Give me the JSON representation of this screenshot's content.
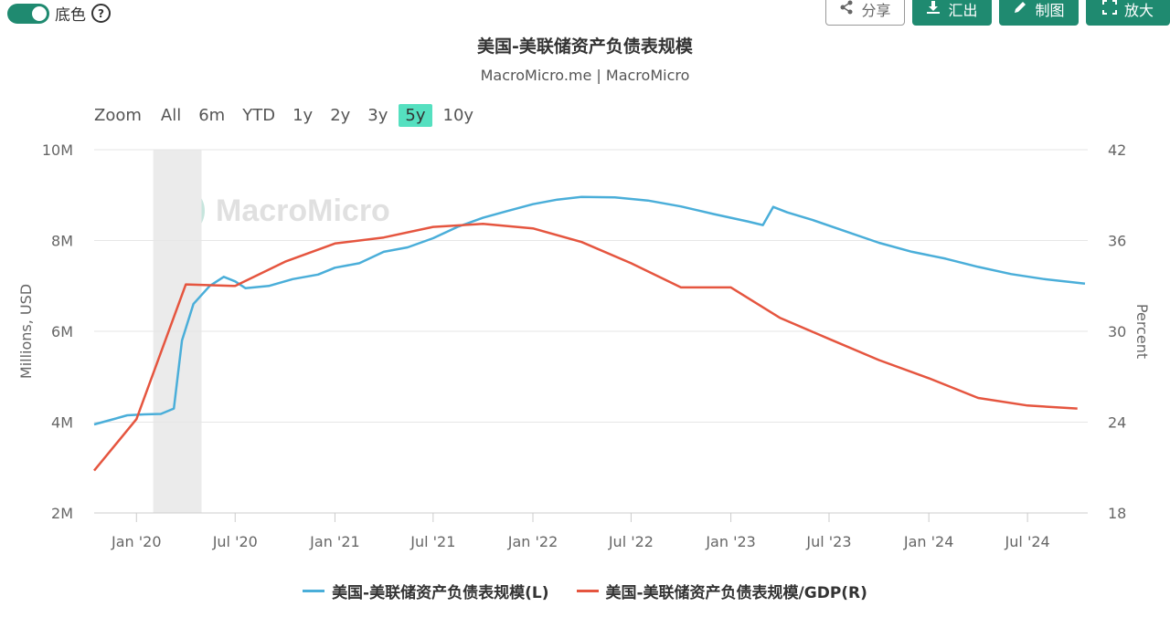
{
  "toggle": {
    "label": "底色",
    "on": true
  },
  "help": {
    "label": "?"
  },
  "toolbar": {
    "share": "分享",
    "export": "汇出",
    "draw": "制图",
    "enlarge": "放大"
  },
  "title": "美国-美联储资产负债表规模",
  "subtitle": "MacroMicro.me | MacroMicro",
  "zoom": {
    "label": "Zoom",
    "options": [
      "All",
      "6m",
      "YTD",
      "1y",
      "2y",
      "3y",
      "5y",
      "10y"
    ],
    "active": "5y"
  },
  "watermark": "MacroMicro",
  "colors": {
    "accent": "#1f8a70",
    "active_zoom": "#55e0c0",
    "series_left": "#4aaed9",
    "series_right": "#e5553f",
    "recession_band": "#ebebeb"
  },
  "chart_data": {
    "type": "line",
    "ylabel_left": "Millions, USD",
    "ylabel_right": "Percent",
    "ylim_left": [
      2000000,
      10000000
    ],
    "ylim_right": [
      18,
      42
    ],
    "yticks_left": [
      "2M",
      "4M",
      "6M",
      "8M",
      "10M"
    ],
    "yticks_right": [
      "18",
      "24",
      "30",
      "36",
      "42"
    ],
    "xticks": [
      "Jan '20",
      "Jul '20",
      "Jan '21",
      "Jul '21",
      "Jan '22",
      "Jul '22",
      "Jan '23",
      "Jul '23",
      "Jan '24",
      "Jul '24"
    ],
    "xlim": [
      "2019-10-15",
      "2024-10-20"
    ],
    "grid": true,
    "shaded_region": {
      "from": "2020-02-01",
      "to": "2020-04-30"
    },
    "series": [
      {
        "name": "美国-美联储资产负债表规模(L)",
        "axis": "left",
        "points": [
          [
            "2019-10-15",
            3950000
          ],
          [
            "2019-11-15",
            4050000
          ],
          [
            "2019-12-15",
            4150000
          ],
          [
            "2020-01-15",
            4170000
          ],
          [
            "2020-02-15",
            4180000
          ],
          [
            "2020-03-10",
            4300000
          ],
          [
            "2020-03-25",
            5800000
          ],
          [
            "2020-04-15",
            6600000
          ],
          [
            "2020-05-15",
            7000000
          ],
          [
            "2020-06-10",
            7200000
          ],
          [
            "2020-07-01",
            7100000
          ],
          [
            "2020-07-20",
            6950000
          ],
          [
            "2020-09-01",
            7000000
          ],
          [
            "2020-10-15",
            7150000
          ],
          [
            "2020-12-01",
            7250000
          ],
          [
            "2021-01-01",
            7400000
          ],
          [
            "2021-02-15",
            7500000
          ],
          [
            "2021-04-01",
            7750000
          ],
          [
            "2021-05-15",
            7850000
          ],
          [
            "2021-07-01",
            8050000
          ],
          [
            "2021-08-15",
            8300000
          ],
          [
            "2021-10-01",
            8500000
          ],
          [
            "2021-11-15",
            8650000
          ],
          [
            "2022-01-01",
            8800000
          ],
          [
            "2022-02-15",
            8900000
          ],
          [
            "2022-04-01",
            8960000
          ],
          [
            "2022-06-01",
            8950000
          ],
          [
            "2022-08-01",
            8880000
          ],
          [
            "2022-10-01",
            8750000
          ],
          [
            "2022-12-01",
            8580000
          ],
          [
            "2023-02-01",
            8420000
          ],
          [
            "2023-03-01",
            8340000
          ],
          [
            "2023-03-20",
            8740000
          ],
          [
            "2023-04-15",
            8620000
          ],
          [
            "2023-06-01",
            8450000
          ],
          [
            "2023-08-01",
            8200000
          ],
          [
            "2023-10-01",
            7950000
          ],
          [
            "2023-12-01",
            7750000
          ],
          [
            "2024-02-01",
            7600000
          ],
          [
            "2024-04-01",
            7420000
          ],
          [
            "2024-06-01",
            7260000
          ],
          [
            "2024-08-01",
            7150000
          ],
          [
            "2024-10-15",
            7050000
          ]
        ]
      },
      {
        "name": "美国-美联储资产负债表规模/GDP(R)",
        "axis": "right",
        "points": [
          [
            "2019-10-15",
            20.8
          ],
          [
            "2020-01-01",
            24.2
          ],
          [
            "2020-04-01",
            33.1
          ],
          [
            "2020-07-01",
            33.0
          ],
          [
            "2020-10-01",
            34.6
          ],
          [
            "2021-01-01",
            35.8
          ],
          [
            "2021-04-01",
            36.2
          ],
          [
            "2021-07-01",
            36.9
          ],
          [
            "2021-10-01",
            37.1
          ],
          [
            "2022-01-01",
            36.8
          ],
          [
            "2022-04-01",
            35.9
          ],
          [
            "2022-07-01",
            34.5
          ],
          [
            "2022-10-01",
            32.9
          ],
          [
            "2023-01-01",
            32.9
          ],
          [
            "2023-04-01",
            30.9
          ],
          [
            "2023-07-01",
            29.5
          ],
          [
            "2023-10-01",
            28.1
          ],
          [
            "2024-01-01",
            26.9
          ],
          [
            "2024-04-01",
            25.6
          ],
          [
            "2024-07-01",
            25.1
          ],
          [
            "2024-10-01",
            24.9
          ]
        ]
      }
    ]
  }
}
